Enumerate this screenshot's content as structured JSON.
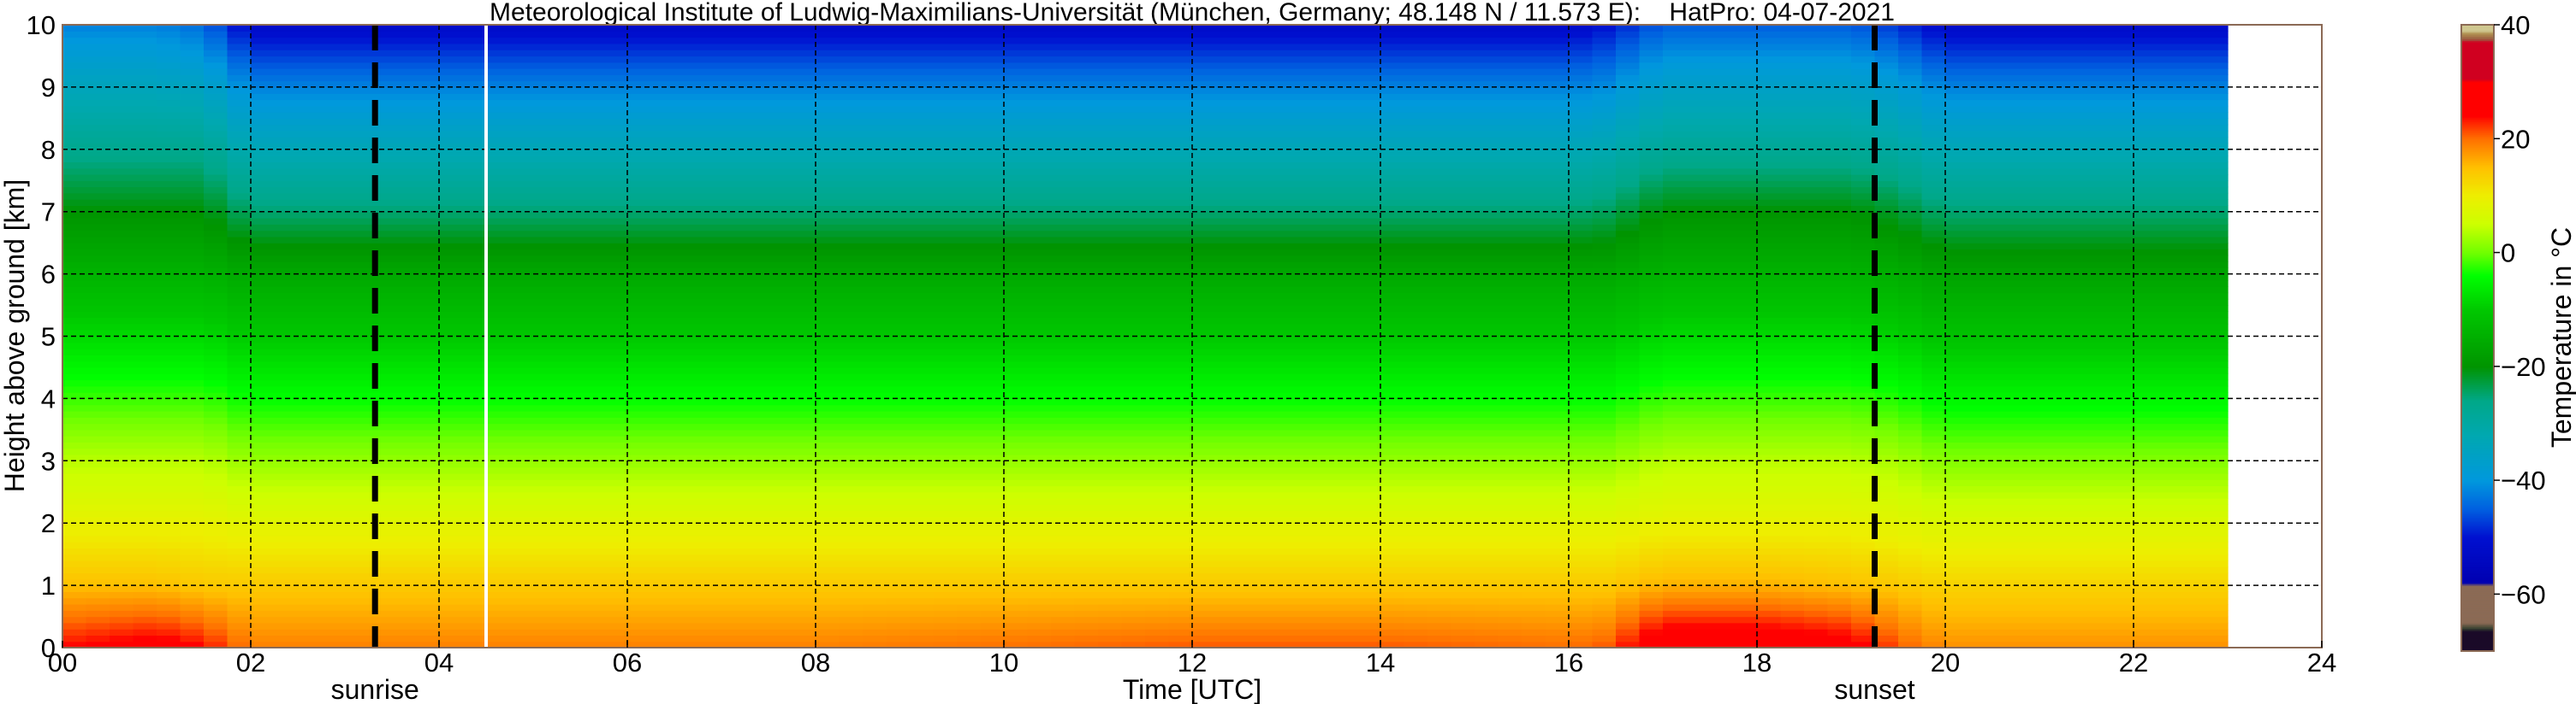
{
  "chart_data": {
    "type": "heatmap",
    "title": "Meteorological Institute of Ludwig-Maximilians-Universität (München, Germany; 48.148 N / 11.573 E):    HatPro: 04-07-2021",
    "xlabel": "Time [UTC]",
    "ylabel": "Height above ground [km]",
    "colorbar_label": "Temperature in $^\\circ$C",
    "colorbar_label_text": "Temperature in °C",
    "xlim": [
      0,
      24
    ],
    "ylim": [
      0,
      10
    ],
    "clim": [
      -70,
      40
    ],
    "x_ticks": [
      0,
      2,
      4,
      6,
      8,
      10,
      12,
      14,
      16,
      18,
      20,
      22,
      24
    ],
    "x_tick_labels": [
      "00",
      "02",
      "04",
      "06",
      "08",
      "10",
      "12",
      "14",
      "16",
      "18",
      "20",
      "22",
      "24"
    ],
    "y_ticks": [
      0,
      1,
      2,
      3,
      4,
      5,
      6,
      7,
      8,
      9,
      10
    ],
    "y_tick_labels": [
      "0",
      "1",
      "2",
      "3",
      "4",
      "5",
      "6",
      "7",
      "8",
      "9",
      "10"
    ],
    "colorbar_ticks": [
      40,
      20,
      0,
      -20,
      -40,
      -60
    ],
    "colorbar_tick_labels": [
      "40",
      "20",
      "0",
      "−20",
      "−40",
      "−60"
    ],
    "grid": true,
    "annotations": [
      {
        "label": "sunrise",
        "time": 3.32,
        "style": "thick-dashed"
      },
      {
        "label": "sunset",
        "time": 19.25,
        "style": "thick-dashed"
      }
    ],
    "marker_line": {
      "time": 4.5,
      "color": "#ffffff"
    },
    "data_end_time": 23,
    "heights_km": [
      0,
      1,
      2,
      3,
      4,
      5,
      6,
      7,
      8,
      9,
      10
    ],
    "times_h": [
      0,
      1,
      1.5,
      2,
      4,
      6,
      8,
      10,
      12,
      14,
      16,
      16.4,
      17,
      18,
      19,
      19.5,
      20,
      22,
      23
    ],
    "temperature_c": [
      [
        24,
        15,
        9,
        4,
        -2,
        -8,
        -14,
        -20,
        -27,
        -34,
        -42
      ],
      [
        26,
        15,
        9,
        4,
        -2,
        -8,
        -14,
        -20,
        -27,
        -34,
        -42
      ],
      [
        24,
        14,
        9,
        4,
        -2,
        -8,
        -14,
        -20,
        -27,
        -35,
        -44
      ],
      [
        19,
        14,
        8,
        2,
        -4,
        -10,
        -16,
        -25,
        -33,
        -42,
        -52
      ],
      [
        19,
        14,
        8,
        2,
        -4,
        -10,
        -16,
        -25,
        -33,
        -42,
        -52
      ],
      [
        19,
        14,
        8,
        2,
        -4,
        -10,
        -16,
        -25,
        -33,
        -42,
        -52
      ],
      [
        19,
        14,
        8,
        2,
        -4,
        -10,
        -16,
        -25,
        -33,
        -42,
        -52
      ],
      [
        20,
        14,
        8,
        2,
        -4,
        -10,
        -16,
        -25,
        -33,
        -42,
        -52
      ],
      [
        21,
        14,
        8,
        2,
        -4,
        -10,
        -16,
        -25,
        -33,
        -42,
        -52
      ],
      [
        21,
        14,
        8,
        2,
        -4,
        -10,
        -16,
        -25,
        -33,
        -42,
        -52
      ],
      [
        20,
        14,
        8,
        2,
        -4,
        -10,
        -16,
        -25,
        -33,
        -42,
        -52
      ],
      [
        21,
        14,
        8,
        2,
        -4,
        -10,
        -16,
        -24,
        -32,
        -41,
        -50
      ],
      [
        28,
        16,
        9,
        4,
        -2,
        -8,
        -14,
        -20,
        -28,
        -36,
        -45
      ],
      [
        28,
        16,
        9,
        4,
        -2,
        -8,
        -14,
        -20,
        -28,
        -36,
        -45
      ],
      [
        26,
        15,
        9,
        4,
        -2,
        -8,
        -14,
        -20,
        -28,
        -36,
        -45
      ],
      [
        21,
        14,
        8,
        3,
        -3,
        -9,
        -15,
        -22,
        -30,
        -38,
        -48
      ],
      [
        18,
        13,
        7,
        1,
        -5,
        -11,
        -17,
        -25,
        -33,
        -42,
        -52
      ],
      [
        18,
        13,
        7,
        1,
        -5,
        -11,
        -17,
        -25,
        -33,
        -42,
        -52
      ],
      [
        18,
        13,
        7,
        1,
        -5,
        -11,
        -17,
        -25,
        -33,
        -42,
        -52
      ]
    ],
    "colormap": [
      [
        -70,
        "#1a0a28"
      ],
      [
        -66.5,
        "#1a0a28"
      ],
      [
        -66,
        "#34402f"
      ],
      [
        -65,
        "#8b6a55"
      ],
      [
        -58.5,
        "#8b6a55"
      ],
      [
        -58,
        "#0000b0"
      ],
      [
        -50,
        "#0010d0"
      ],
      [
        -45,
        "#0060e0"
      ],
      [
        -40,
        "#0098dd"
      ],
      [
        -32,
        "#00a8b0"
      ],
      [
        -26,
        "#00a888"
      ],
      [
        -20,
        "#009400"
      ],
      [
        -10,
        "#00c800"
      ],
      [
        -4,
        "#00ff00"
      ],
      [
        0,
        "#70ff00"
      ],
      [
        5,
        "#ccff00"
      ],
      [
        10,
        "#eeee00"
      ],
      [
        15,
        "#ffc000"
      ],
      [
        20,
        "#ff7000"
      ],
      [
        23,
        "#ff2000"
      ],
      [
        24,
        "#ff0000"
      ],
      [
        30,
        "#ff0000"
      ],
      [
        30.5,
        "#d00020"
      ],
      [
        37,
        "#d00020"
      ],
      [
        37.5,
        "#9a5a40"
      ],
      [
        38.5,
        "#b09050"
      ],
      [
        39,
        "#d0c890"
      ],
      [
        40,
        "#d0c890"
      ]
    ]
  }
}
